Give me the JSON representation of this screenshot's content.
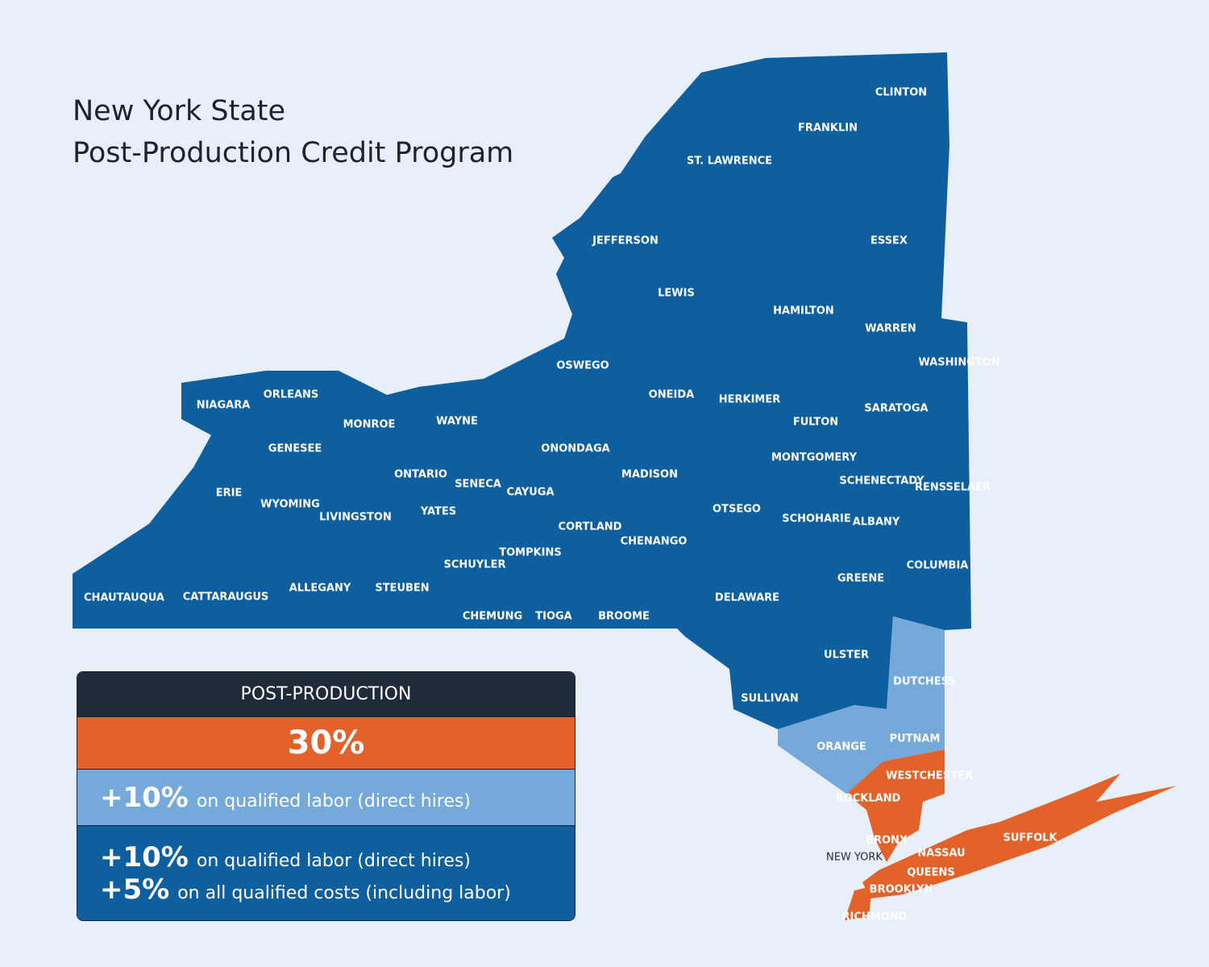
{
  "header": {
    "title_line1": "New York State",
    "title_line2": "Post-Production Credit Program"
  },
  "counties": [
    "CLINTON",
    "FRANKLIN",
    "ST. LAWRENCE",
    "JEFFERSON",
    "ESSEX",
    "LEWIS",
    "HAMILTON",
    "WARREN",
    "WASHINGTON",
    "OSWEGO",
    "ONEIDA",
    "HERKIMER",
    "NIAGARA",
    "ORLEANS",
    "MONROE",
    "WAYNE",
    "FULTON",
    "SARATOGA",
    "ONONDAGA",
    "GENESEE",
    "MONTGOMERY",
    "ONTARIO",
    "MADISON",
    "SCHENECTADY",
    "SENECA",
    "RENSSELAER",
    "ERIE",
    "CAYUGA",
    "WYOMING",
    "OTSEGO",
    "YATES",
    "LIVINGSTON",
    "SCHOHARIE",
    "ALBANY",
    "CORTLAND",
    "CHENANGO",
    "TOMPKINS",
    "SCHUYLER",
    "COLUMBIA",
    "GREENE",
    "CHAUTAUQUA",
    "CATTARAUGUS",
    "ALLEGANY",
    "STEUBEN",
    "DELAWARE",
    "CHEMUNG",
    "TIOGA",
    "BROOME",
    "ULSTER",
    "DUTCHESS",
    "SULLIVAN",
    "ORANGE",
    "PUTNAM",
    "WESTCHESTER",
    "ROCKLAND",
    "SUFFOLK",
    "BRONX",
    "NASSAU",
    "NEW YORK",
    "QUEENS",
    "BROOKLYN",
    "RICHMOND"
  ],
  "legend": {
    "header": "POST-PRODUCTION",
    "base": "30%",
    "tier1": {
      "bonus": "+10%",
      "text": "on qualified labor (direct hires)"
    },
    "tier2": [
      {
        "bonus": "+10%",
        "text": "on qualified labor (direct hires)"
      },
      {
        "bonus": "+5%",
        "text": "on all qualified costs (including labor)"
      }
    ]
  }
}
